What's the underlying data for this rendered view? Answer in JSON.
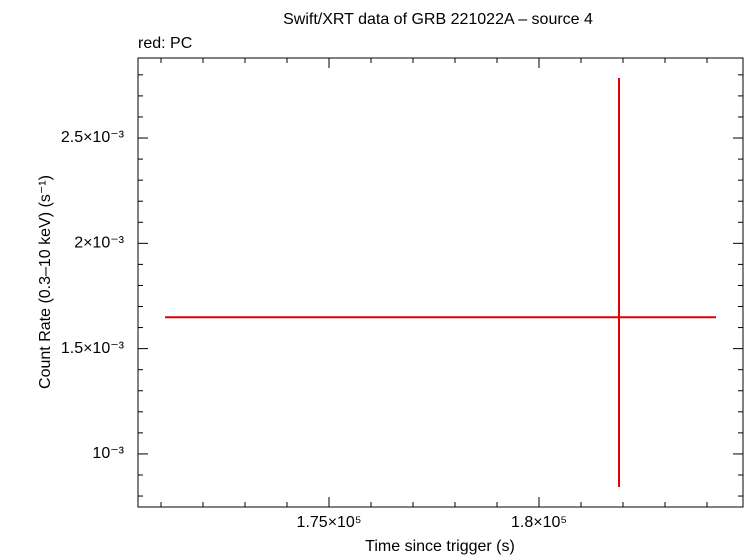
{
  "chart_data": {
    "type": "errorbar",
    "title": "Swift/XRT data of GRB 221022A – source 4",
    "subtitle": "red: PC",
    "x_label": "Time since trigger (s)",
    "y_label": "Count Rate (0.3–10 keV) (s⁻¹)",
    "series": [
      {
        "name": "PC",
        "color": "#e00000",
        "x": [
          181905
        ],
        "xerr_minus": [
          10810
        ],
        "xerr_plus": [
          2309
        ],
        "values": [
          0.001649
        ],
        "yerr_minus": [
          0.000806
        ],
        "yerr_plus": [
          0.001136
        ]
      }
    ],
    "xlim": [
      170452,
      184857
    ],
    "ylim": [
      0.000748,
      0.00288
    ],
    "xticks": [
      {
        "value": 175000,
        "label": "1.75×10⁵"
      },
      {
        "value": 180000,
        "label": "1.8×10⁵"
      }
    ],
    "yticks": [
      {
        "value": 0.001,
        "label": "10⁻³"
      },
      {
        "value": 0.0015,
        "label": "1.5×10⁻³"
      },
      {
        "value": 0.002,
        "label": "2×10⁻³"
      },
      {
        "value": 0.0025,
        "label": "2.5×10⁻³"
      }
    ],
    "xminorticks": [
      171000,
      172000,
      173000,
      174000,
      176000,
      177000,
      178000,
      179000,
      181000,
      182000,
      183000,
      184000
    ],
    "yminorticks": [
      0.0008,
      0.0009,
      0.0011,
      0.0012,
      0.0013,
      0.0014,
      0.0016,
      0.0017,
      0.0018,
      0.0019,
      0.0021,
      0.0022,
      0.0023,
      0.0024,
      0.0026,
      0.0027,
      0.0028
    ]
  }
}
